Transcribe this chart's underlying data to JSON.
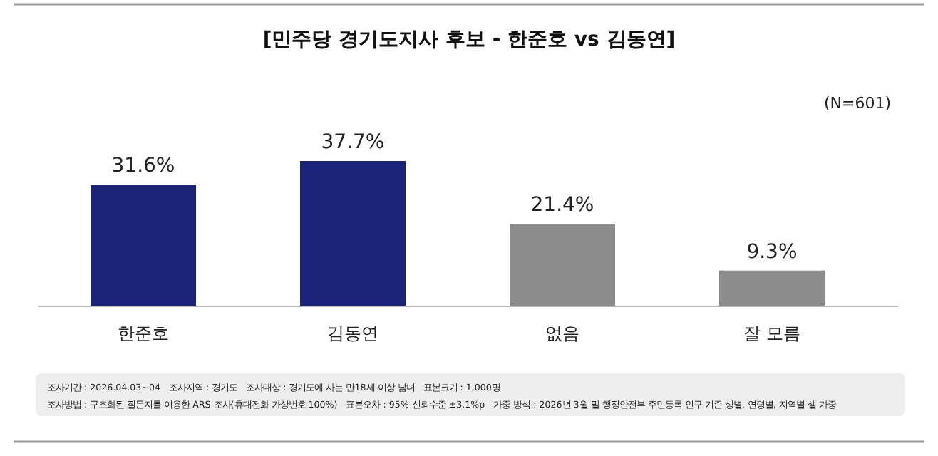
{
  "chart_data": {
    "type": "bar",
    "title": "[민주당 경기도지사 후보 - 한준호 vs 김동연]",
    "subtitle": "(N=601)",
    "categories": [
      "한준호",
      "김동연",
      "없음",
      "잘 모름"
    ],
    "values": [
      31.6,
      37.7,
      21.4,
      9.3
    ],
    "colors": [
      "#1b2378",
      "#1b2378",
      "#8c8c8c",
      "#8c8c8c"
    ],
    "value_labels": [
      "31.6%",
      "37.7%",
      "21.4%",
      "9.3%"
    ],
    "annotations": [
      "조사기간 : 2026.04.03~04",
      "조사지역 : 경기도",
      "조사대상 : 경기도에 사는 만18세 이상 남녀",
      "표본크기 : 1,000명",
      "조사방법 : 구조화된 질문지를 이용한 ARS 조사(휴대전화 가상번호 100%)",
      "표본오차 : 95% 신뢰수준 ±3.1%p",
      "가중 방식 : 2026년 3월 말 행정안전부 주민등록 인구 기준 성별, 연령별, 지역별 셀 가중"
    ]
  }
}
